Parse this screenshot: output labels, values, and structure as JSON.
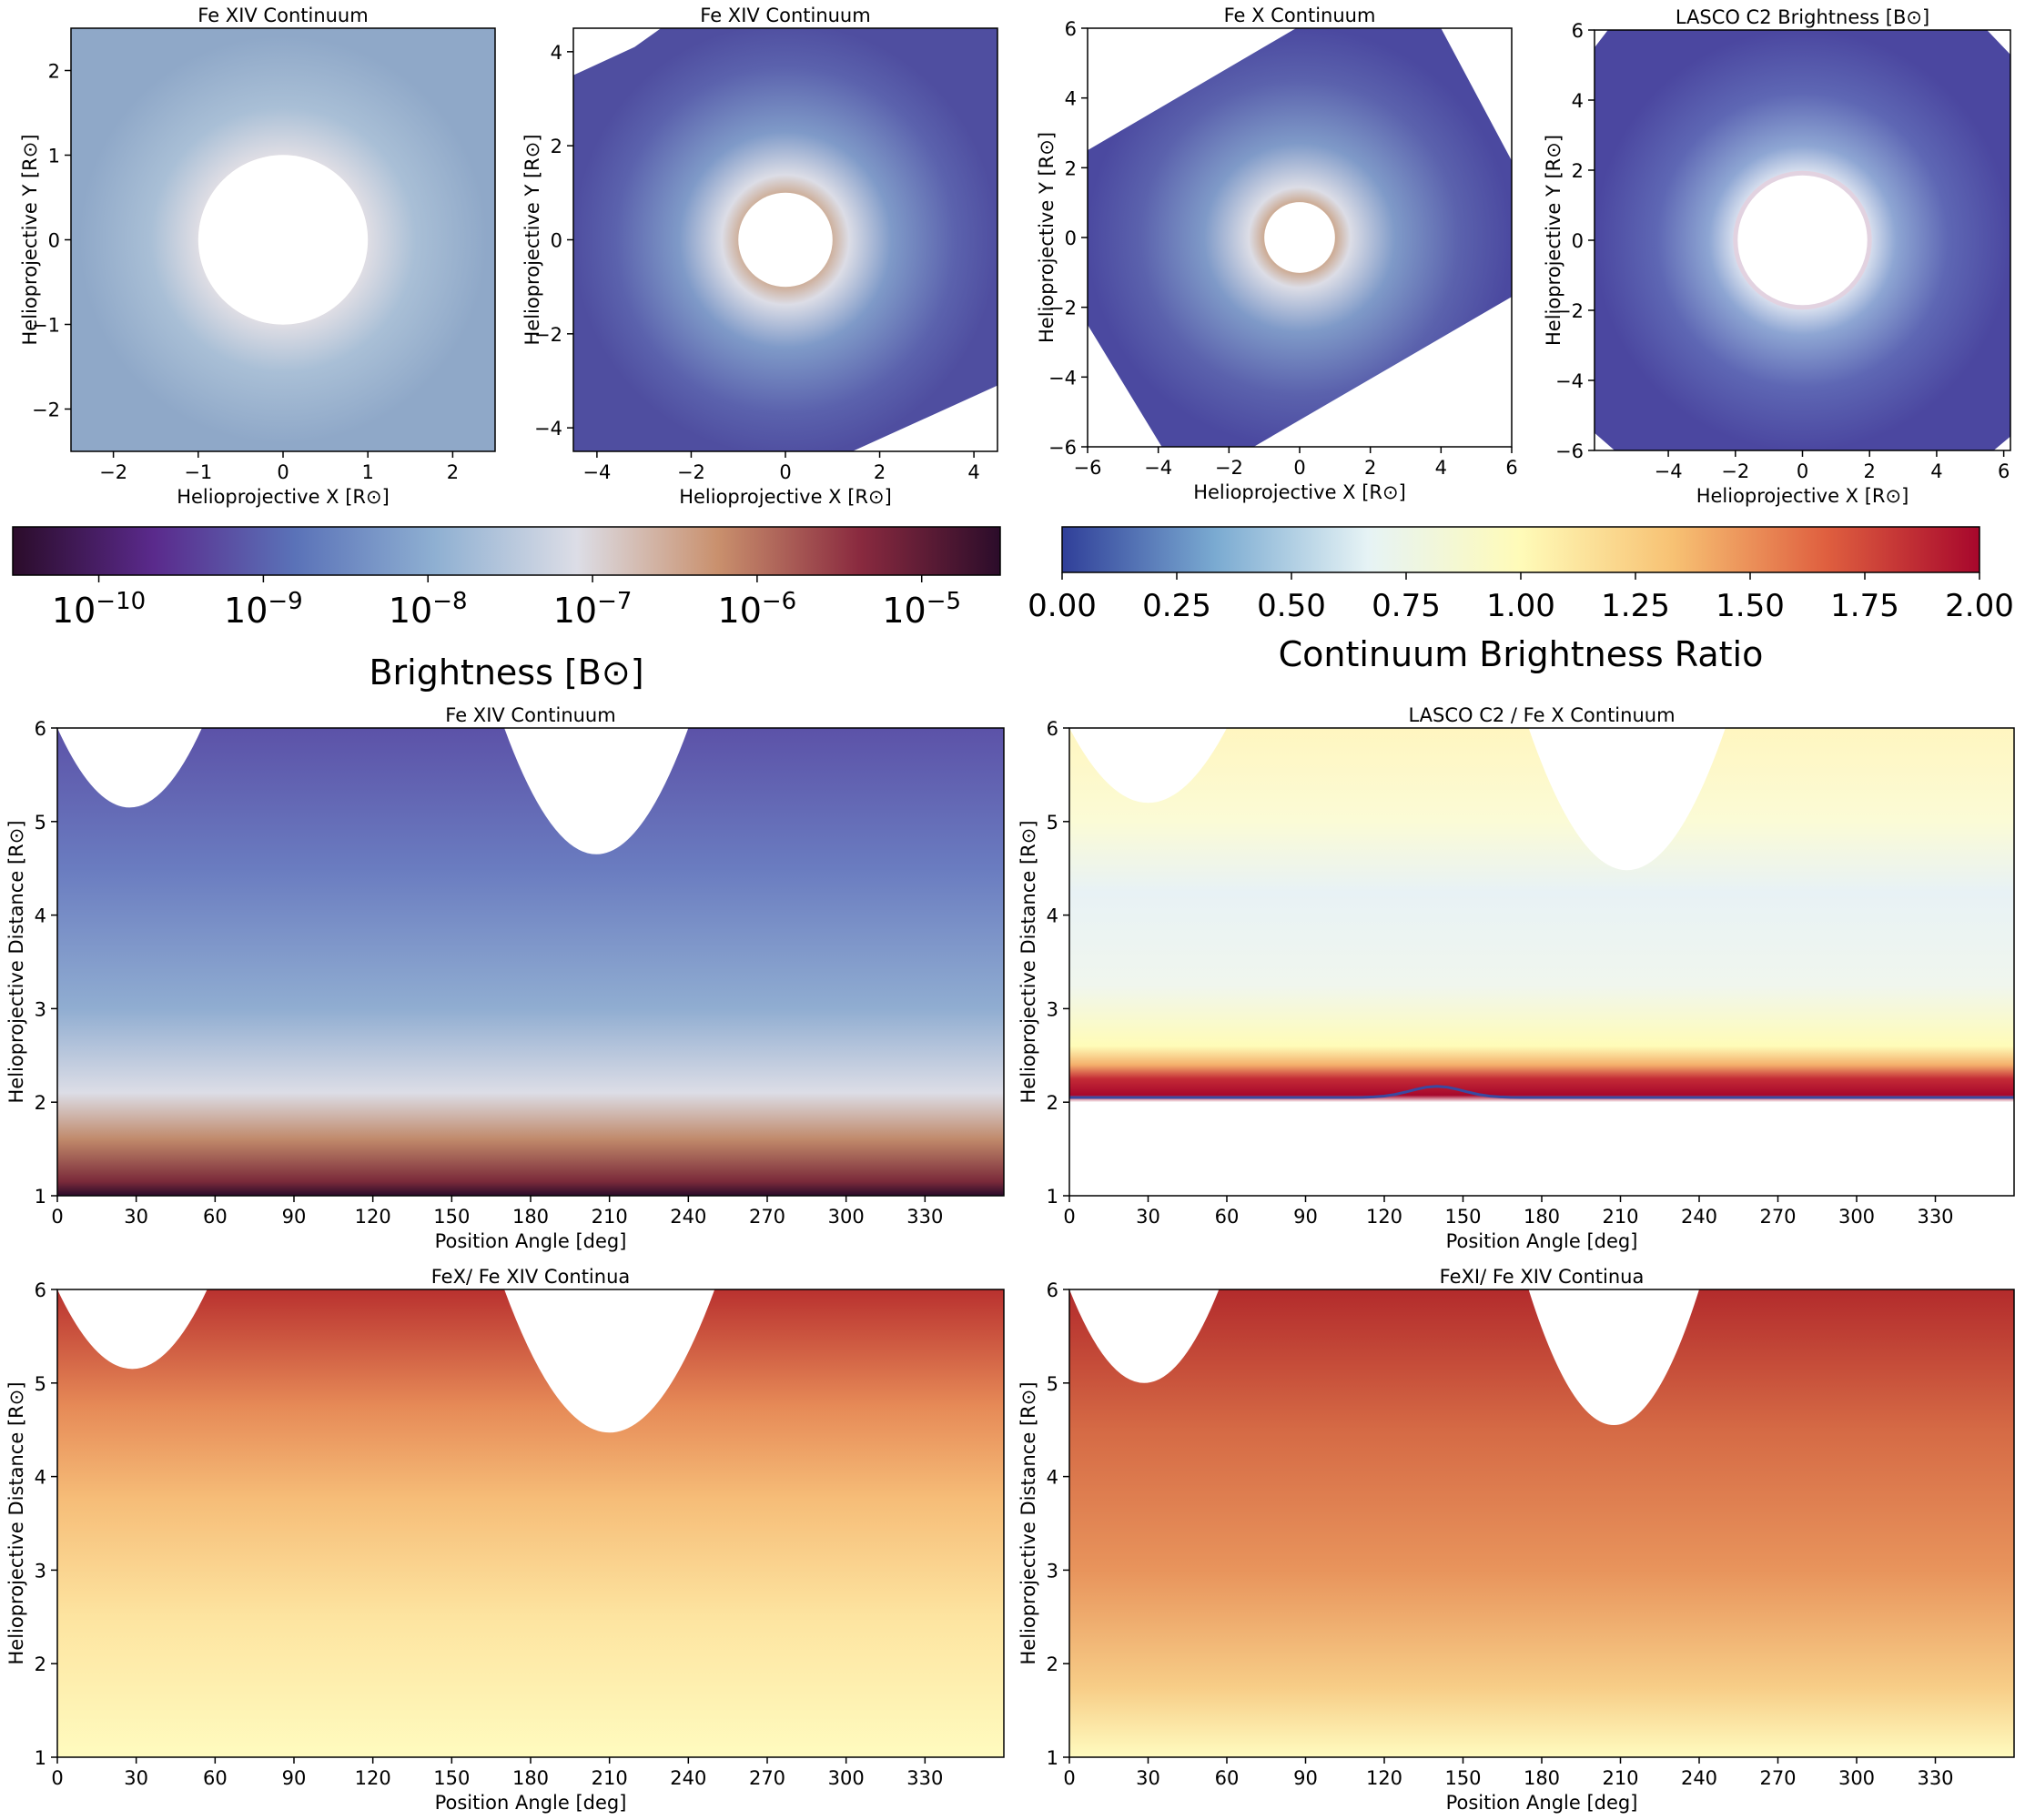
{
  "figure": {
    "cmap_brightness": [
      "#2b0c2a",
      "#5a2a8c",
      "#5a72b8",
      "#8fb0d2",
      "#dcdde6",
      "#c9906d",
      "#8a2a3f",
      "#2b0c2a"
    ],
    "cmap_ratio": [
      "#303f99",
      "#7aaad1",
      "#e6f3f5",
      "#fffbb8",
      "#f7c173",
      "#df5f3f",
      "#a7072c"
    ]
  },
  "chart_data": [
    {
      "id": "p1",
      "type": "heatmap",
      "title": "Fe XIV Continuum",
      "xlabel": "Helioprojective X [R⊙]",
      "ylabel": "Helioprojective Y [R⊙]",
      "xlim": [
        -2.5,
        2.5
      ],
      "ylim": [
        -2.5,
        2.5
      ],
      "xticks": [
        "−2",
        "−1",
        "0",
        "1",
        "2"
      ],
      "xtick_values": [
        -2,
        -1,
        0,
        1,
        2
      ],
      "yticks": [
        "−2",
        "−1",
        "0",
        "1",
        "2"
      ],
      "ytick_values": [
        -2,
        -1,
        0,
        1,
        2
      ],
      "occulter_radius": 1.0,
      "colormap": "Brightness"
    },
    {
      "id": "p2",
      "type": "heatmap",
      "title": "Fe XIV Continuum",
      "xlabel": "Helioprojective X [R⊙]",
      "ylabel": "Helioprojective Y [R⊙]",
      "xlim": [
        -4.5,
        4.5
      ],
      "ylim": [
        -4.5,
        4.5
      ],
      "xticks": [
        "−4",
        "−2",
        "0",
        "2",
        "4"
      ],
      "xtick_values": [
        -4,
        -2,
        0,
        2,
        4
      ],
      "yticks": [
        "−4",
        "−2",
        "0",
        "2",
        "4"
      ],
      "ytick_values": [
        -4,
        -2,
        0,
        2,
        4
      ],
      "occulter_radius": 1.0,
      "colormap": "Brightness"
    },
    {
      "id": "p3",
      "type": "heatmap",
      "title": "Fe X Continuum",
      "xlabel": "Helioprojective X [R⊙]",
      "ylabel": "Helioprojective Y [R⊙]",
      "xlim": [
        -6,
        6
      ],
      "ylim": [
        -6,
        6
      ],
      "xticks": [
        "−6",
        "−4",
        "−2",
        "0",
        "2",
        "4",
        "6"
      ],
      "xtick_values": [
        -6,
        -4,
        -2,
        0,
        2,
        4,
        6
      ],
      "yticks": [
        "−6",
        "−4",
        "−2",
        "0",
        "2",
        "4",
        "6"
      ],
      "ytick_values": [
        -6,
        -4,
        -2,
        0,
        2,
        4,
        6
      ],
      "occulter_radius": 1.0,
      "colormap": "Brightness"
    },
    {
      "id": "p4",
      "type": "heatmap",
      "title": "LASCO C2 Brightness [B⊙]",
      "xlabel": "Helioprojective X [R⊙]",
      "ylabel": "Helioprojective Y [R⊙]",
      "xlim": [
        -6.2,
        6.2
      ],
      "ylim": [
        -6,
        6
      ],
      "xticks": [
        "−4",
        "−2",
        "0",
        "2",
        "4",
        "6"
      ],
      "xtick_values": [
        -4,
        -2,
        0,
        2,
        4,
        6
      ],
      "yticks": [
        "−6",
        "−4",
        "−2",
        "0",
        "2",
        "4",
        "6"
      ],
      "ytick_values": [
        -6,
        -4,
        -2,
        0,
        2,
        4,
        6
      ],
      "occulter_radius": 2.0,
      "colormap": "Brightness"
    },
    {
      "id": "cb1",
      "type": "colorbar",
      "label": "Brightness [B⊙]",
      "scale": "log",
      "range": [
        3e-11,
        3e-05
      ],
      "ticks": [
        "10−10",
        "10−9",
        "10−8",
        "10−7",
        "10−6",
        "10−5"
      ],
      "tick_values": [
        1e-10,
        1e-09,
        1e-08,
        1e-07,
        1e-06,
        1e-05
      ]
    },
    {
      "id": "cb2",
      "type": "colorbar",
      "label": "Continuum Brightness Ratio",
      "scale": "linear",
      "range": [
        0.0,
        2.0
      ],
      "ticks": [
        "0.00",
        "0.25",
        "0.50",
        "0.75",
        "1.00",
        "1.25",
        "1.50",
        "1.75",
        "2.00"
      ],
      "tick_values": [
        0.0,
        0.25,
        0.5,
        0.75,
        1.0,
        1.25,
        1.5,
        1.75,
        2.0
      ]
    },
    {
      "id": "p5",
      "type": "heatmap",
      "title": "Fe XIV Continuum",
      "xlabel": "Position Angle [deg]",
      "ylabel": "Helioprojective Distance [R⊙]",
      "xlim": [
        0,
        360
      ],
      "ylim": [
        1,
        6
      ],
      "xticks": [
        "0",
        "30",
        "60",
        "90",
        "120",
        "150",
        "180",
        "210",
        "240",
        "270",
        "300",
        "330"
      ],
      "xtick_values": [
        0,
        30,
        60,
        90,
        120,
        150,
        180,
        210,
        240,
        270,
        300,
        330
      ],
      "yticks": [
        "1",
        "2",
        "3",
        "4",
        "5",
        "6"
      ],
      "ytick_values": [
        1,
        2,
        3,
        4,
        5,
        6
      ],
      "colormap": "Brightness",
      "gaps": [
        {
          "from": 0,
          "to": 55,
          "min": 5.15
        },
        {
          "from": 170,
          "to": 240,
          "min": 4.65
        }
      ]
    },
    {
      "id": "p6",
      "type": "heatmap",
      "title": "LASCO C2 / Fe X Continuum",
      "xlabel": "Position Angle [deg]",
      "ylabel": "Helioprojective Distance [R⊙]",
      "xlim": [
        0,
        360
      ],
      "ylim": [
        1,
        6
      ],
      "xticks": [
        "0",
        "30",
        "60",
        "90",
        "120",
        "150",
        "180",
        "210",
        "240",
        "270",
        "300",
        "330"
      ],
      "xtick_values": [
        0,
        30,
        60,
        90,
        120,
        150,
        180,
        210,
        240,
        270,
        300,
        330
      ],
      "yticks": [
        "1",
        "2",
        "3",
        "4",
        "5",
        "6"
      ],
      "ytick_values": [
        1,
        2,
        3,
        4,
        5,
        6
      ],
      "colormap": "Continuum Brightness Ratio",
      "gaps": [
        {
          "from": 0,
          "to": 60,
          "min": 5.2
        },
        {
          "from": 175,
          "to": 250,
          "min": 4.48
        }
      ]
    },
    {
      "id": "p7",
      "type": "heatmap",
      "title": "FeX/ Fe XIV Continua",
      "xlabel": "Position Angle [deg]",
      "ylabel": "Helioprojective Distance [R⊙]",
      "xlim": [
        0,
        360
      ],
      "ylim": [
        1,
        6
      ],
      "xticks": [
        "0",
        "30",
        "60",
        "90",
        "120",
        "150",
        "180",
        "210",
        "240",
        "270",
        "300",
        "330"
      ],
      "xtick_values": [
        0,
        30,
        60,
        90,
        120,
        150,
        180,
        210,
        240,
        270,
        300,
        330
      ],
      "yticks": [
        "1",
        "2",
        "3",
        "4",
        "5",
        "6"
      ],
      "ytick_values": [
        1,
        2,
        3,
        4,
        5,
        6
      ],
      "colormap": "Continuum Brightness Ratio",
      "gaps": [
        {
          "from": 0,
          "to": 57,
          "min": 5.15
        },
        {
          "from": 170,
          "to": 250,
          "min": 4.47
        }
      ]
    },
    {
      "id": "p8",
      "type": "heatmap",
      "title": "FeXI/ Fe XIV Continua",
      "xlabel": "Position Angle [deg]",
      "ylabel": "Helioprojective Distance [R⊙]",
      "xlim": [
        0,
        360
      ],
      "ylim": [
        1,
        6
      ],
      "xticks": [
        "0",
        "30",
        "60",
        "90",
        "120",
        "150",
        "180",
        "210",
        "240",
        "270",
        "300",
        "330"
      ],
      "xtick_values": [
        0,
        30,
        60,
        90,
        120,
        150,
        180,
        210,
        240,
        270,
        300,
        330
      ],
      "yticks": [
        "1",
        "2",
        "3",
        "4",
        "5",
        "6"
      ],
      "ytick_values": [
        1,
        2,
        3,
        4,
        5,
        6
      ],
      "colormap": "Continuum Brightness Ratio",
      "gaps": [
        {
          "from": 0,
          "to": 57,
          "min": 5.0
        },
        {
          "from": 175,
          "to": 240,
          "min": 4.55
        }
      ]
    }
  ]
}
